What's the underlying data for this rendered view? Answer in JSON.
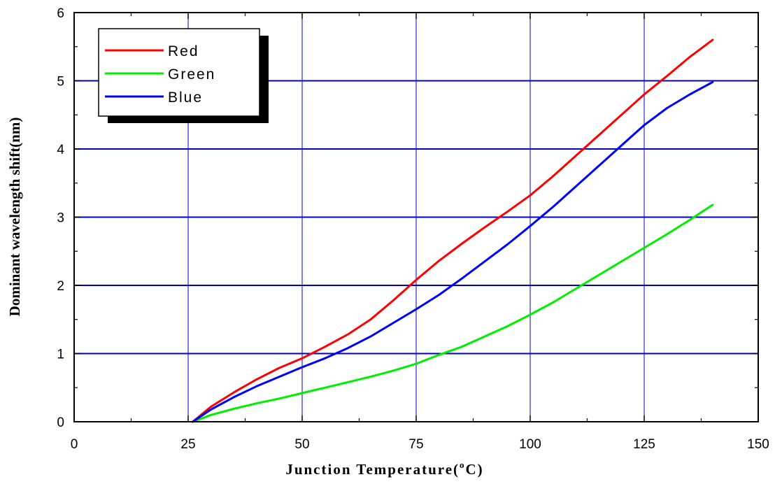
{
  "chart_data": {
    "type": "line",
    "xlabel": "Junction Temperature(",
    "xlabel_sup": "o",
    "xlabel_unit": "C)",
    "ylabel": "Dominant wavelength shift(nm)",
    "xlim": [
      0,
      150
    ],
    "ylim": [
      0,
      6
    ],
    "x_ticks": [
      "0",
      "25",
      "50",
      "75",
      "100",
      "125",
      "150"
    ],
    "y_ticks": [
      "0",
      "1",
      "2",
      "3",
      "4",
      "5",
      "6"
    ],
    "grid": true,
    "legend_position": "top-left",
    "series": [
      {
        "name": "Red",
        "color": "#ff0000",
        "x": [
          26,
          30,
          35,
          40,
          45,
          50,
          55,
          60,
          65,
          70,
          75,
          80,
          85,
          90,
          95,
          100,
          105,
          110,
          115,
          120,
          125,
          130,
          135,
          140
        ],
        "y": [
          0,
          0.22,
          0.43,
          0.62,
          0.79,
          0.93,
          1.1,
          1.28,
          1.5,
          1.78,
          2.08,
          2.36,
          2.61,
          2.85,
          3.08,
          3.32,
          3.6,
          3.9,
          4.2,
          4.5,
          4.8,
          5.07,
          5.35,
          5.6
        ]
      },
      {
        "name": "Green",
        "color": "#00ee00",
        "x": [
          26,
          30,
          35,
          40,
          45,
          50,
          55,
          60,
          65,
          70,
          75,
          80,
          85,
          90,
          95,
          100,
          105,
          110,
          115,
          120,
          125,
          130,
          135,
          140
        ],
        "y": [
          0,
          0.1,
          0.19,
          0.27,
          0.34,
          0.42,
          0.5,
          0.58,
          0.66,
          0.75,
          0.85,
          0.98,
          1.1,
          1.25,
          1.4,
          1.57,
          1.75,
          1.95,
          2.15,
          2.35,
          2.55,
          2.75,
          2.96,
          3.18
        ]
      },
      {
        "name": "Blue",
        "color": "#0000ff",
        "x": [
          26,
          30,
          35,
          40,
          45,
          50,
          55,
          60,
          65,
          70,
          75,
          80,
          85,
          90,
          95,
          100,
          105,
          110,
          115,
          120,
          125,
          130,
          135,
          140
        ],
        "y": [
          0,
          0.18,
          0.36,
          0.52,
          0.66,
          0.8,
          0.93,
          1.08,
          1.25,
          1.45,
          1.65,
          1.86,
          2.1,
          2.35,
          2.6,
          2.87,
          3.15,
          3.45,
          3.75,
          4.05,
          4.35,
          4.6,
          4.8,
          4.98
        ]
      }
    ]
  }
}
